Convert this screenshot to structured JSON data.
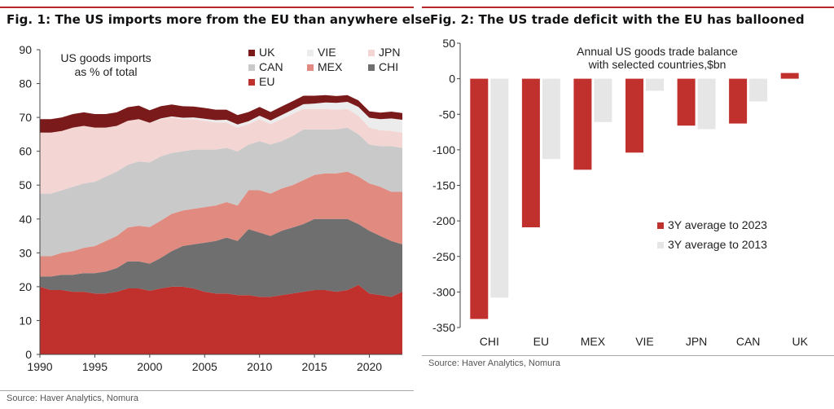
{
  "figures": [
    {
      "title": "Fig. 1: The US imports more from the EU than anywhere else",
      "source": "Source: Haver Analytics, Nomura"
    },
    {
      "title": "Fig. 2: The US trade deficit with the EU has ballooned",
      "source": "Source: Haver Analytics, Nomura"
    }
  ],
  "chart_data": [
    {
      "type": "area",
      "stacked": true,
      "annotation": [
        "US goods imports",
        "as % of total"
      ],
      "x": [
        1990,
        1991,
        1992,
        1993,
        1994,
        1995,
        1996,
        1997,
        1998,
        1999,
        2000,
        2001,
        2002,
        2003,
        2004,
        2005,
        2006,
        2007,
        2008,
        2009,
        2010,
        2011,
        2012,
        2013,
        2014,
        2015,
        2016,
        2017,
        2018,
        2019,
        2020,
        2021,
        2022,
        2023
      ],
      "xticks": [
        1990,
        1995,
        2000,
        2005,
        2010,
        2015,
        2020
      ],
      "ylim": [
        0,
        90
      ],
      "yticks": [
        0,
        10,
        20,
        30,
        40,
        50,
        60,
        70,
        80,
        90
      ],
      "grid": false,
      "legend_position": "top-right",
      "series": [
        {
          "name": "EU",
          "color": "#c0302d",
          "values": [
            20,
            19,
            19,
            18.5,
            18.5,
            18,
            18,
            18.5,
            19.5,
            19.5,
            18.8,
            19.5,
            20,
            20,
            19.5,
            18.5,
            18,
            18,
            17.5,
            17.5,
            17,
            17,
            17.5,
            18,
            18.5,
            19,
            19,
            18.5,
            19,
            20.5,
            18,
            17.5,
            17,
            18.5
          ]
        },
        {
          "name": "CHI",
          "color": "#6f6f6f",
          "values": [
            3,
            4,
            4.5,
            5,
            5.5,
            6,
            6.5,
            7,
            8,
            8,
            8,
            9,
            10.5,
            12,
            13,
            14.5,
            15.5,
            16.5,
            16,
            19.5,
            19,
            18,
            19,
            19.5,
            20,
            21,
            21,
            21.5,
            21,
            18,
            18.5,
            17.5,
            16.5,
            14
          ]
        },
        {
          "name": "MEX",
          "color": "#e08a80",
          "values": [
            6,
            6,
            6.5,
            7,
            7.5,
            8,
            9,
            9.5,
            10,
            10.5,
            10.8,
            11,
            11,
            10.5,
            10.5,
            10.5,
            10.5,
            10.5,
            10.5,
            11.5,
            12.5,
            12.5,
            12.5,
            12.5,
            13,
            13,
            13.5,
            13.5,
            14,
            14,
            14,
            14.5,
            14.5,
            15.5
          ]
        },
        {
          "name": "CAN",
          "color": "#c9c9c9",
          "values": [
            18.5,
            18.5,
            18.5,
            19,
            19,
            19,
            19,
            19,
            18.5,
            19,
            19.1,
            19,
            18,
            17.5,
            17.5,
            17,
            16.5,
            16,
            16,
            13.5,
            14.5,
            14.5,
            14,
            14.5,
            15,
            13.5,
            13,
            13,
            13,
            12.5,
            11.5,
            12,
            13.5,
            13
          ]
        },
        {
          "name": "JPN",
          "color": "#f3d6d3",
          "values": [
            18,
            18,
            17.5,
            17.5,
            17,
            16,
            14.5,
            13.5,
            13,
            12.5,
            11.6,
            11,
            10.5,
            9.5,
            9,
            8.5,
            8,
            7.5,
            7,
            6,
            6.5,
            6,
            6.5,
            6.5,
            6,
            6,
            6,
            5.8,
            5.5,
            5.5,
            5,
            4.7,
            4.5,
            4.5
          ]
        },
        {
          "name": "VIE",
          "color": "#ececec",
          "values": [
            0,
            0,
            0,
            0,
            0,
            0,
            0,
            0,
            0,
            0,
            0.1,
            0.2,
            0.3,
            0.4,
            0.5,
            0.6,
            0.7,
            0.8,
            0.9,
            0.9,
            1,
            1.1,
            1.2,
            1.3,
            1.4,
            1.6,
            1.9,
            2,
            2.1,
            2.6,
            2.9,
            3.3,
            3.7,
            3.8
          ]
        },
        {
          "name": "UK",
          "color": "#7a1a1a",
          "values": [
            4,
            4,
            4,
            4,
            4,
            4,
            4,
            4,
            4,
            4,
            3.7,
            3.6,
            3.5,
            3.4,
            3.2,
            3.2,
            3.1,
            3,
            2.8,
            2.7,
            2.6,
            2.5,
            2.5,
            2.5,
            2.5,
            2.3,
            2.2,
            2,
            2,
            1.9,
            1.9,
            1.9,
            2,
            2
          ]
        }
      ]
    },
    {
      "type": "bar",
      "annotation": [
        "Annual US goods trade balance",
        "with selected countries,$bn"
      ],
      "categories": [
        "CHI",
        "EU",
        "MEX",
        "VIE",
        "JPN",
        "CAN",
        "UK"
      ],
      "ylim": [
        -350,
        50
      ],
      "yticks": [
        50,
        0,
        -50,
        -100,
        -150,
        -200,
        -250,
        -300,
        -350
      ],
      "grid": false,
      "legend_position": "center-right",
      "series": [
        {
          "name": "3Y average to 2023",
          "color": "#c0302d",
          "values": [
            -338,
            -209,
            -128,
            -104,
            -66,
            -63,
            8
          ]
        },
        {
          "name": "3Y average to 2013",
          "color": "#e6e6e6",
          "values": [
            -308,
            -113,
            -61,
            -17,
            -71,
            -32,
            0
          ]
        }
      ]
    }
  ]
}
